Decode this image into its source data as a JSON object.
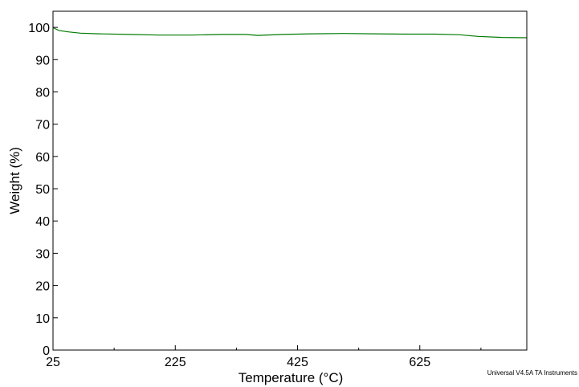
{
  "chart_data": {
    "type": "line",
    "title": "",
    "xlabel": "Temperature (°C)",
    "ylabel": "Weight (%)",
    "xlim": [
      25,
      800
    ],
    "ylim": [
      0,
      105
    ],
    "x_ticks": [
      25,
      225,
      425,
      625
    ],
    "x_minor_ticks": [
      125,
      325,
      525,
      725
    ],
    "y_ticks": [
      0,
      10,
      20,
      30,
      40,
      50,
      60,
      70,
      80,
      90,
      100
    ],
    "grid": false,
    "legend": "none",
    "series": [
      {
        "color": "#007a00",
        "x": [
          25,
          35,
          50,
          70,
          100,
          150,
          200,
          250,
          300,
          340,
          360,
          400,
          450,
          500,
          550,
          600,
          650,
          690,
          720,
          760,
          800
        ],
        "y": [
          99.9,
          99.0,
          98.6,
          98.2,
          98.0,
          97.8,
          97.6,
          97.6,
          97.8,
          97.8,
          97.5,
          97.8,
          98.0,
          98.1,
          98.0,
          97.9,
          97.9,
          97.7,
          97.2,
          96.9,
          96.8
        ]
      }
    ]
  },
  "footer": {
    "note": "Universal V4.5A TA Instruments"
  }
}
